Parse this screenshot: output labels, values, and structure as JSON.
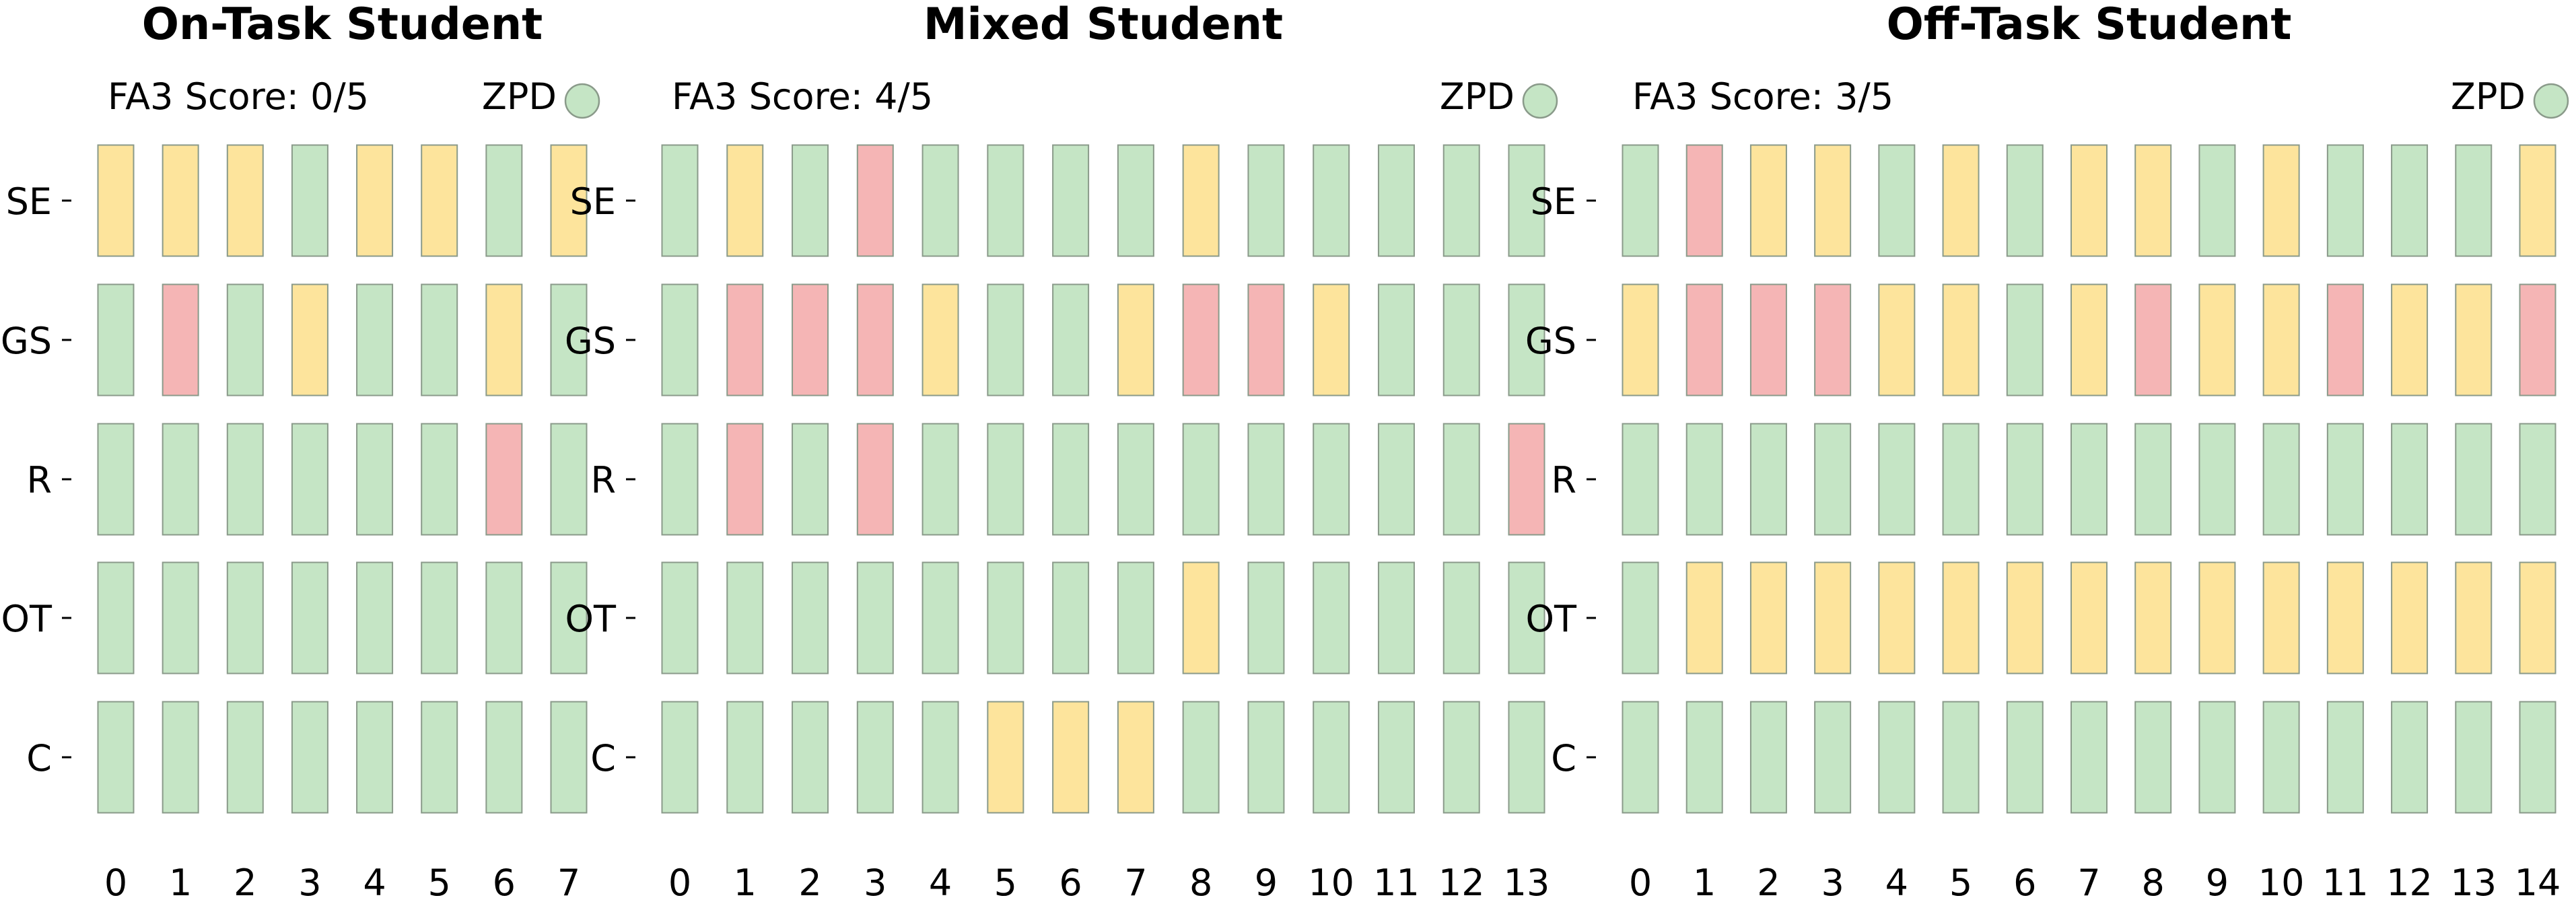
{
  "colors": {
    "green": "#c5e5c5",
    "yellow": "#fde49c",
    "red": "#f5b5b5",
    "zpd": "#c5e5c5"
  },
  "chart_data": [
    {
      "type": "heatmap",
      "title": "On-Task Student",
      "score_label": "FA3 Score: 0/5",
      "zpd_label": "ZPD",
      "zpd_status": "green",
      "rows": [
        "SE",
        "GS",
        "R",
        "OT",
        "C"
      ],
      "x": [
        0,
        1,
        2,
        3,
        4,
        5,
        6,
        7
      ],
      "cells": [
        [
          "yellow",
          "yellow",
          "yellow",
          "green",
          "yellow",
          "yellow",
          "green",
          "yellow"
        ],
        [
          "green",
          "red",
          "green",
          "yellow",
          "green",
          "green",
          "yellow",
          "green"
        ],
        [
          "green",
          "green",
          "green",
          "green",
          "green",
          "green",
          "red",
          "green"
        ],
        [
          "green",
          "green",
          "green",
          "green",
          "green",
          "green",
          "green",
          "green"
        ],
        [
          "green",
          "green",
          "green",
          "green",
          "green",
          "green",
          "green",
          "green"
        ]
      ]
    },
    {
      "type": "heatmap",
      "title": "Mixed Student",
      "score_label": "FA3 Score: 4/5",
      "zpd_label": "ZPD",
      "zpd_status": "green",
      "rows": [
        "SE",
        "GS",
        "R",
        "OT",
        "C"
      ],
      "x": [
        0,
        1,
        2,
        3,
        4,
        5,
        6,
        7,
        8,
        9,
        10,
        11,
        12,
        13
      ],
      "cells": [
        [
          "green",
          "yellow",
          "green",
          "red",
          "green",
          "green",
          "green",
          "green",
          "yellow",
          "green",
          "green",
          "green",
          "green",
          "green"
        ],
        [
          "green",
          "red",
          "red",
          "red",
          "yellow",
          "green",
          "green",
          "yellow",
          "red",
          "red",
          "yellow",
          "green",
          "green",
          "green"
        ],
        [
          "green",
          "red",
          "green",
          "red",
          "green",
          "green",
          "green",
          "green",
          "green",
          "green",
          "green",
          "green",
          "green",
          "red"
        ],
        [
          "green",
          "green",
          "green",
          "green",
          "green",
          "green",
          "green",
          "green",
          "yellow",
          "green",
          "green",
          "green",
          "green",
          "green"
        ],
        [
          "green",
          "green",
          "green",
          "green",
          "green",
          "yellow",
          "yellow",
          "yellow",
          "green",
          "green",
          "green",
          "green",
          "green",
          "green"
        ]
      ]
    },
    {
      "type": "heatmap",
      "title": "Off-Task Student",
      "score_label": "FA3 Score: 3/5",
      "zpd_label": "ZPD",
      "zpd_status": "green",
      "rows": [
        "SE",
        "GS",
        "R",
        "OT",
        "C"
      ],
      "x": [
        0,
        1,
        2,
        3,
        4,
        5,
        6,
        7,
        8,
        9,
        10,
        11,
        12,
        13,
        14
      ],
      "cells": [
        [
          "green",
          "red",
          "yellow",
          "yellow",
          "green",
          "yellow",
          "green",
          "yellow",
          "yellow",
          "green",
          "yellow",
          "green",
          "green",
          "green",
          "yellow"
        ],
        [
          "yellow",
          "red",
          "red",
          "red",
          "yellow",
          "yellow",
          "green",
          "yellow",
          "red",
          "yellow",
          "yellow",
          "red",
          "yellow",
          "yellow",
          "red"
        ],
        [
          "green",
          "green",
          "green",
          "green",
          "green",
          "green",
          "green",
          "green",
          "green",
          "green",
          "green",
          "green",
          "green",
          "green",
          "green"
        ],
        [
          "green",
          "yellow",
          "yellow",
          "yellow",
          "yellow",
          "yellow",
          "yellow",
          "yellow",
          "yellow",
          "yellow",
          "yellow",
          "yellow",
          "yellow",
          "yellow",
          "yellow"
        ],
        [
          "green",
          "green",
          "green",
          "green",
          "green",
          "green",
          "green",
          "green",
          "green",
          "green",
          "green",
          "green",
          "green",
          "green",
          "green"
        ]
      ]
    }
  ]
}
